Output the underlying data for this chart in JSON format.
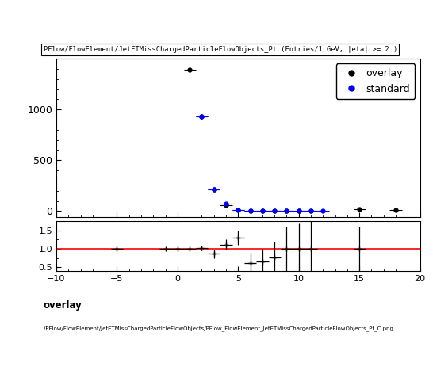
{
  "title": "PFlow/FlowElement/JetETMissChargedParticleFlowObjects_Pt (Entries/1 GeV, |eta| >= 2 )",
  "footer_line1": "overlay",
  "footer_line2": "/PFlow/FlowElement/JetETMissChargedParticleFlowObjects/PFlow_FlowElement_JetETMissChargedParticleFlowObjects_Pt_C.png",
  "main_xlim": [
    -10,
    20
  ],
  "main_ylim": [
    -60,
    1500
  ],
  "ratio_xlim": [
    -10,
    20
  ],
  "ratio_ylim": [
    0.4,
    1.75
  ],
  "overlay_x": [
    1,
    2,
    3,
    4,
    5,
    6,
    7,
    8,
    9,
    10,
    11,
    15,
    18
  ],
  "overlay_y": [
    1390,
    930,
    210,
    60,
    10,
    5,
    3,
    2,
    1,
    1,
    0,
    20,
    10
  ],
  "overlay_xerr": [
    0.5,
    0.5,
    0.5,
    0.5,
    0.5,
    0.5,
    0.5,
    0.5,
    0.5,
    0.5,
    0.5,
    0.5,
    0.5
  ],
  "overlay_yerr": [
    30,
    25,
    12,
    6,
    2,
    1.5,
    1.2,
    1,
    1,
    1,
    0,
    4,
    2
  ],
  "standard_x": [
    2,
    3,
    4,
    5,
    6,
    7,
    8,
    9,
    10,
    11,
    12
  ],
  "standard_y": [
    930,
    210,
    70,
    12,
    6,
    3,
    2,
    1,
    1,
    1,
    0
  ],
  "standard_xerr": [
    0.5,
    0.5,
    0.5,
    0.5,
    0.5,
    0.5,
    0.5,
    0.5,
    0.5,
    0.5,
    0.5
  ],
  "standard_yerr": [
    25,
    12,
    6,
    2,
    1.5,
    1.2,
    1,
    1,
    1,
    1,
    0
  ],
  "ratio_x": [
    -5,
    -1,
    0,
    1,
    2,
    3,
    4,
    5,
    6,
    7,
    8,
    9,
    10,
    11,
    15
  ],
  "ratio_y": [
    1.0,
    1.0,
    1.0,
    1.0,
    1.02,
    0.87,
    1.12,
    1.3,
    0.62,
    0.65,
    0.77,
    1.0,
    1.0,
    1.0,
    1.0
  ],
  "ratio_yerr": [
    0.04,
    0.04,
    0.04,
    0.04,
    0.07,
    0.12,
    0.15,
    0.2,
    0.28,
    0.35,
    0.42,
    0.6,
    0.7,
    0.8,
    0.6
  ],
  "ratio_xerr": [
    0.5,
    0.5,
    0.5,
    0.5,
    0.5,
    0.5,
    0.5,
    0.5,
    0.5,
    0.5,
    0.5,
    0.5,
    0.5,
    0.5,
    0.5
  ],
  "overlay_color": "black",
  "standard_color": "blue",
  "ratio_line_color": "red",
  "background_color": "white"
}
